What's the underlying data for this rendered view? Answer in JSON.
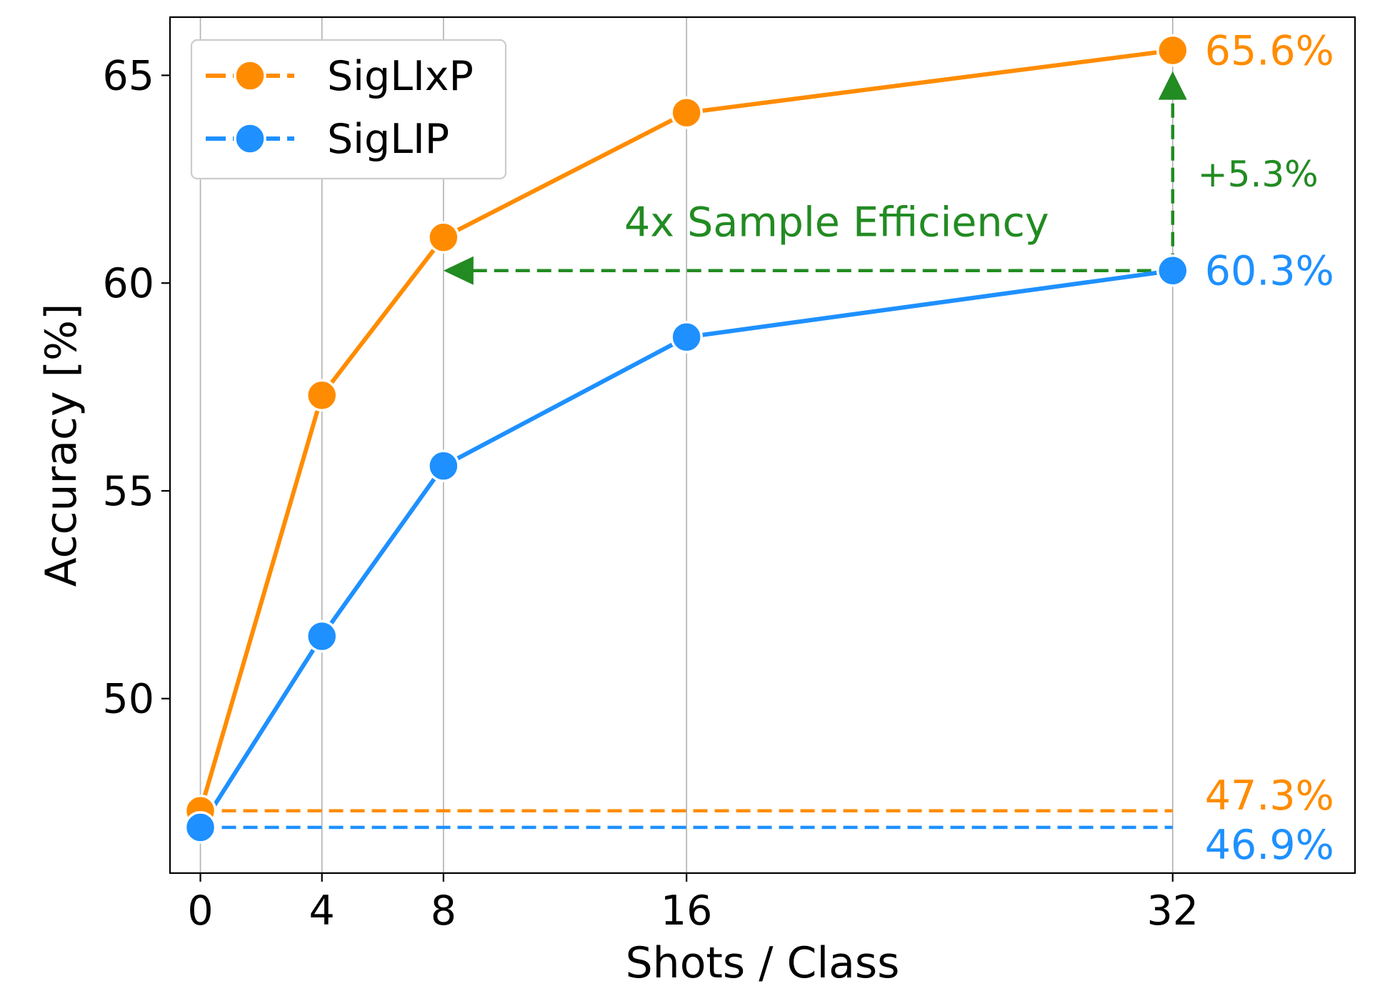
{
  "chart_data": {
    "type": "line",
    "xlabel": "Shots / Class",
    "ylabel": "Accuracy [%]",
    "x": [
      0,
      4,
      8,
      16,
      32
    ],
    "x_ticks": [
      0,
      4,
      8,
      16,
      32
    ],
    "x_tick_labels": [
      "0",
      "4",
      "8",
      "16",
      "32"
    ],
    "y_ticks": [
      50,
      55,
      60,
      65
    ],
    "y_tick_labels": [
      "50",
      "55",
      "60",
      "65"
    ],
    "xlim": [
      -1,
      38
    ],
    "ylim": [
      45.8,
      66.4
    ],
    "grid": "vertical",
    "legend_position": "top-left",
    "series": [
      {
        "name": "SigLIxP",
        "color": "#FF8C00",
        "values": [
          47.3,
          57.3,
          61.1,
          64.1,
          65.6
        ],
        "baseline": 47.3,
        "end_label": "65.6%",
        "baseline_label": "47.3%"
      },
      {
        "name": "SigLIP",
        "color": "#1E90FF",
        "values": [
          46.9,
          51.5,
          55.6,
          58.7,
          60.3
        ],
        "baseline": 46.9,
        "end_label": "60.3%",
        "baseline_label": "46.9%"
      }
    ],
    "annotations": {
      "color": "#228B22",
      "horizontal_arrow": {
        "from_x": 32,
        "to_x": 8,
        "y": 60.3,
        "label": "4x Sample Efficiency"
      },
      "vertical_arrow": {
        "x": 32,
        "from_y": 60.3,
        "to_y": 65.1,
        "label": "+5.3%"
      }
    }
  }
}
